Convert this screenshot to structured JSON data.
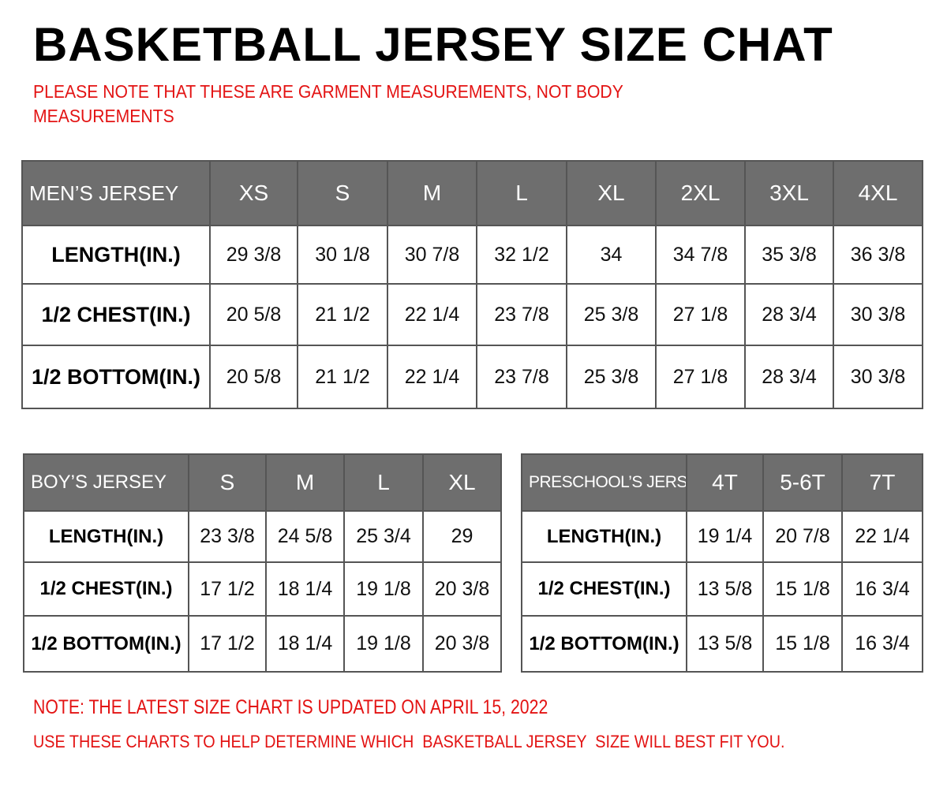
{
  "title": "BASKETBALL JERSEY SIZE CHAT",
  "notice": "PLEASE NOTE THAT THESE ARE GARMENT MEASUREMENTS, NOT BODY MEASUREMENTS",
  "colors": {
    "header_bg": "#6e6e6e",
    "note_red": "#e31313"
  },
  "tables": {
    "mens": {
      "header": "MEN’S JERSEY",
      "sizes": [
        "XS",
        "S",
        "M",
        "L",
        "XL",
        "2XL",
        "3XL",
        "4XL"
      ],
      "rows": [
        {
          "label": "LENGTH(IN.)",
          "values": [
            "29 3/8",
            "30 1/8",
            "30 7/8",
            "32 1/2",
            "34",
            "34 7/8",
            "35 3/8",
            "36 3/8"
          ]
        },
        {
          "label": "1/2 CHEST(IN.)",
          "values": [
            "20 5/8",
            "21 1/2",
            "22 1/4",
            "23 7/8",
            "25 3/8",
            "27 1/8",
            "28 3/4",
            "30 3/8"
          ]
        },
        {
          "label": "1/2 BOTTOM(IN.)",
          "values": [
            "20 5/8",
            "21 1/2",
            "22 1/4",
            "23 7/8",
            "25 3/8",
            "27 1/8",
            "28 3/4",
            "30 3/8"
          ]
        }
      ]
    },
    "boys": {
      "header": "BOY’S JERSEY",
      "sizes": [
        "S",
        "M",
        "L",
        "XL"
      ],
      "rows": [
        {
          "label": "LENGTH(IN.)",
          "values": [
            "23 3/8",
            "24 5/8",
            "25 3/4",
            "29"
          ]
        },
        {
          "label": "1/2 CHEST(IN.)",
          "values": [
            "17 1/2",
            "18 1/4",
            "19 1/8",
            "20 3/8"
          ]
        },
        {
          "label": "1/2 BOTTOM(IN.)",
          "values": [
            "17 1/2",
            "18 1/4",
            "19 1/8",
            "20 3/8"
          ]
        }
      ]
    },
    "preschool": {
      "header": "PRESCHOOL’S JERSEY",
      "sizes": [
        "4T",
        "5-6T",
        "7T"
      ],
      "rows": [
        {
          "label": "LENGTH(IN.)",
          "values": [
            "19 1/4",
            "20 7/8",
            "22 1/4"
          ]
        },
        {
          "label": "1/2 CHEST(IN.)",
          "values": [
            "13 5/8",
            "15 1/8",
            "16 3/4"
          ]
        },
        {
          "label": "1/2 BOTTOM(IN.)",
          "values": [
            "13 5/8",
            "15 1/8",
            "16 3/4"
          ]
        }
      ]
    }
  },
  "footer": {
    "update_note": "NOTE: THE LATEST SIZE CHART IS UPDATED ON APRIL 15, 2022",
    "usage_note": "USE THESE CHARTS TO HELP DETERMINE WHICH  BASKETBALL JERSEY  SIZE WILL BEST FIT YOU."
  }
}
